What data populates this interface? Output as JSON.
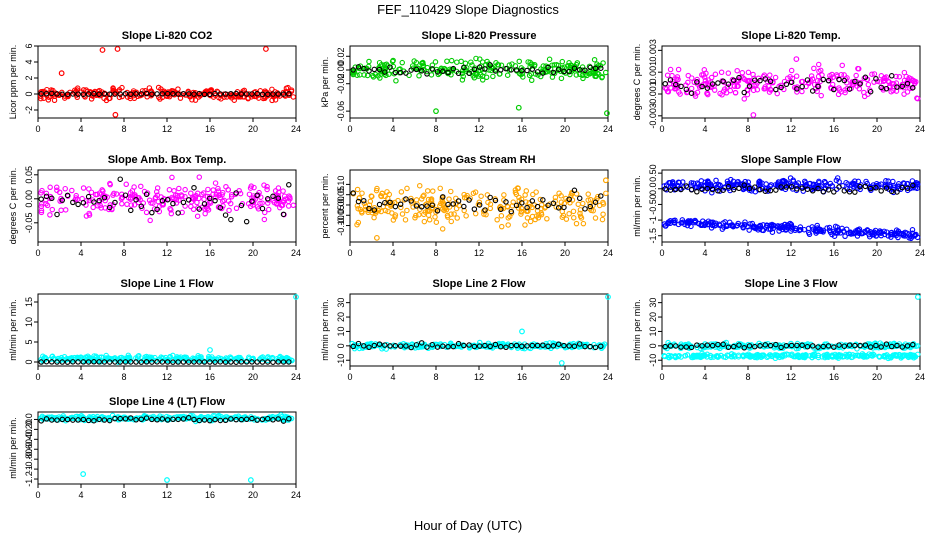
{
  "title": "FEF_110429  Slope Diagnostics",
  "xlabel": "Hour of Day (UTC)",
  "chart_data": [
    {
      "type": "scatter",
      "title": "Slope Li-820 CO2",
      "ylabel": "Licor ppm per min.",
      "color": "#ff0000",
      "xlim": [
        0,
        24
      ],
      "xticks": [
        0,
        4,
        8,
        12,
        16,
        20,
        24
      ],
      "ylim": [
        -3,
        6
      ],
      "yticks": [
        -2,
        0,
        2,
        4,
        6
      ],
      "series": [
        {
          "center": 0,
          "spread": 0.6,
          "outliers": [
            [
              6,
              5.5
            ],
            [
              7.4,
              6.0
            ],
            [
              21.2,
              5.8
            ],
            [
              7.2,
              -2.6
            ],
            [
              2.2,
              2.6
            ]
          ]
        }
      ],
      "ref": {
        "center": 0,
        "spread": 0.05
      }
    },
    {
      "type": "scatter",
      "title": "Slope Li-820 Pressure",
      "ylabel": "kPa per min.",
      "color": "#00cc00",
      "xlim": [
        0,
        24
      ],
      "xticks": [
        0,
        4,
        8,
        12,
        16,
        20,
        24
      ],
      "ylim": [
        -0.07,
        0.035
      ],
      "yticks": [
        -0.06,
        -0.02,
        0.0,
        0.02
      ],
      "series": [
        {
          "center": 0.0,
          "spread": 0.012,
          "outliers": [
            [
              8,
              -0.06
            ],
            [
              15.7,
              -0.055
            ],
            [
              23.9,
              -0.063
            ]
          ]
        }
      ],
      "ref": {
        "center": 0.0,
        "spread": 0.005
      }
    },
    {
      "type": "scatter",
      "title": "Slope Li-820 Temp.",
      "ylabel": "degrees C per min.",
      "color": "#ff00ff",
      "xlim": [
        0,
        24
      ],
      "xticks": [
        0,
        4,
        8,
        12,
        16,
        20,
        24
      ],
      "ylim": [
        -0.0032,
        0.0034
      ],
      "yticks": [
        -0.003,
        -0.001,
        0.001,
        0.003
      ],
      "series": [
        {
          "center": 0.0,
          "spread": 0.001,
          "outliers": [
            [
              8.5,
              -0.0031
            ],
            [
              12.5,
              0.0022
            ]
          ]
        }
      ],
      "ref": {
        "center": 0.0,
        "spread": 0.0008
      }
    },
    {
      "type": "scatter",
      "title": "Slope Amb. Box Temp.",
      "ylabel": "degrees C per min.",
      "color": "#ff00ff",
      "xlim": [
        0,
        24
      ],
      "xticks": [
        0,
        4,
        8,
        12,
        16,
        20,
        24
      ],
      "ylim": [
        -0.09,
        0.06
      ],
      "yticks": [
        -0.05,
        0.0,
        0.05
      ],
      "series": [
        {
          "center": 0.0,
          "spread": 0.03,
          "outliers": []
        }
      ],
      "ref": {
        "center": -0.01,
        "spread": 0.03
      }
    },
    {
      "type": "scatter",
      "title": "Slope Gas Stream RH",
      "ylabel": "percent per min.",
      "color": "#ffa500",
      "xlim": [
        0,
        24
      ],
      "xticks": [
        0,
        4,
        8,
        12,
        16,
        20,
        24
      ],
      "ylim": [
        -0.18,
        0.17
      ],
      "yticks": [
        -0.1,
        -0.05,
        0.0,
        0.05,
        0.1
      ],
      "series": [
        {
          "center": 0.0,
          "spread": 0.07,
          "outliers": [
            [
              23.8,
              0.12
            ],
            [
              2.5,
              -0.16
            ]
          ]
        }
      ],
      "ref": {
        "center": 0.0,
        "spread": 0.05
      }
    },
    {
      "type": "scatter",
      "title": "Slope Sample Flow",
      "ylabel": "ml/min per min.",
      "color": "#0000ff",
      "xlim": [
        0,
        24
      ],
      "xticks": [
        0,
        4,
        8,
        12,
        16,
        20,
        24
      ],
      "ylim": [
        -1.7,
        0.6
      ],
      "yticks": [
        -1.5,
        -1.0,
        -0.5,
        0.0,
        0.5
      ],
      "series": [
        {
          "center": 0.1,
          "spread": 0.15,
          "outliers": []
        },
        {
          "center": -1.05,
          "spread": 0.12,
          "drift": -0.018,
          "outliers": []
        }
      ],
      "ref": {
        "center": 0.0,
        "spread": 0.1
      }
    },
    {
      "type": "scatter",
      "title": "Slope Line 1 Flow",
      "ylabel": "ml/min per min.",
      "color": "#00ffff",
      "xlim": [
        0,
        24
      ],
      "xticks": [
        0,
        4,
        8,
        12,
        16,
        20,
        24
      ],
      "ylim": [
        -1,
        17
      ],
      "yticks": [
        0,
        5,
        10,
        15
      ],
      "series": [
        {
          "center": 0.8,
          "spread": 0.6,
          "outliers": [
            [
              24,
              16.5
            ],
            [
              16,
              3
            ]
          ]
        }
      ],
      "ref": {
        "center": 0,
        "spread": 0.05
      }
    },
    {
      "type": "scatter",
      "title": "Slope Line 2 Flow",
      "ylabel": "ml/min per min.",
      "color": "#00ffff",
      "xlim": [
        0,
        24
      ],
      "xticks": [
        0,
        4,
        8,
        12,
        16,
        20,
        24
      ],
      "ylim": [
        -14,
        36
      ],
      "yticks": [
        -10,
        0,
        10,
        20,
        30
      ],
      "series": [
        {
          "center": 0,
          "spread": 1.5,
          "outliers": [
            [
              24,
              35
            ],
            [
              16,
              10
            ],
            [
              19.7,
              -12
            ]
          ]
        }
      ],
      "ref": {
        "center": 0,
        "spread": 1.2
      }
    },
    {
      "type": "scatter",
      "title": "Slope Line 3 Flow",
      "ylabel": "ml/min per min.",
      "color": "#00ffff",
      "xlim": [
        0,
        24
      ],
      "xticks": [
        0,
        4,
        8,
        12,
        16,
        20,
        24
      ],
      "ylim": [
        -14,
        36
      ],
      "yticks": [
        -10,
        0,
        10,
        20,
        30
      ],
      "series": [
        {
          "center": 0,
          "spread": 1.5,
          "outliers": [
            [
              23.8,
              35
            ]
          ]
        },
        {
          "center": -7,
          "spread": 1.2,
          "outliers": []
        }
      ],
      "ref": {
        "center": 0,
        "spread": 1.2
      }
    },
    {
      "type": "scatter",
      "title": "Slope Line 4 (LT) Flow",
      "ylabel": "ml/min per min.",
      "color": "#00ffff",
      "xlim": [
        0,
        24
      ],
      "xticks": [
        0,
        4,
        8,
        12,
        16,
        20,
        24
      ],
      "ylim": [
        -1.3,
        0.15
      ],
      "yticks": [
        -1.2,
        -1.0,
        -0.8,
        -0.6,
        -0.4,
        -0.2,
        0.0
      ],
      "series": [
        {
          "center": 0.03,
          "spread": 0.04,
          "outliers": [
            [
              4.2,
              -1.1
            ],
            [
              12,
              -1.22
            ],
            [
              19.8,
              -1.22
            ],
            [
              22.6,
              0.1
            ]
          ]
        }
      ],
      "ref": {
        "center": 0.0,
        "spread": 0.03
      }
    }
  ]
}
